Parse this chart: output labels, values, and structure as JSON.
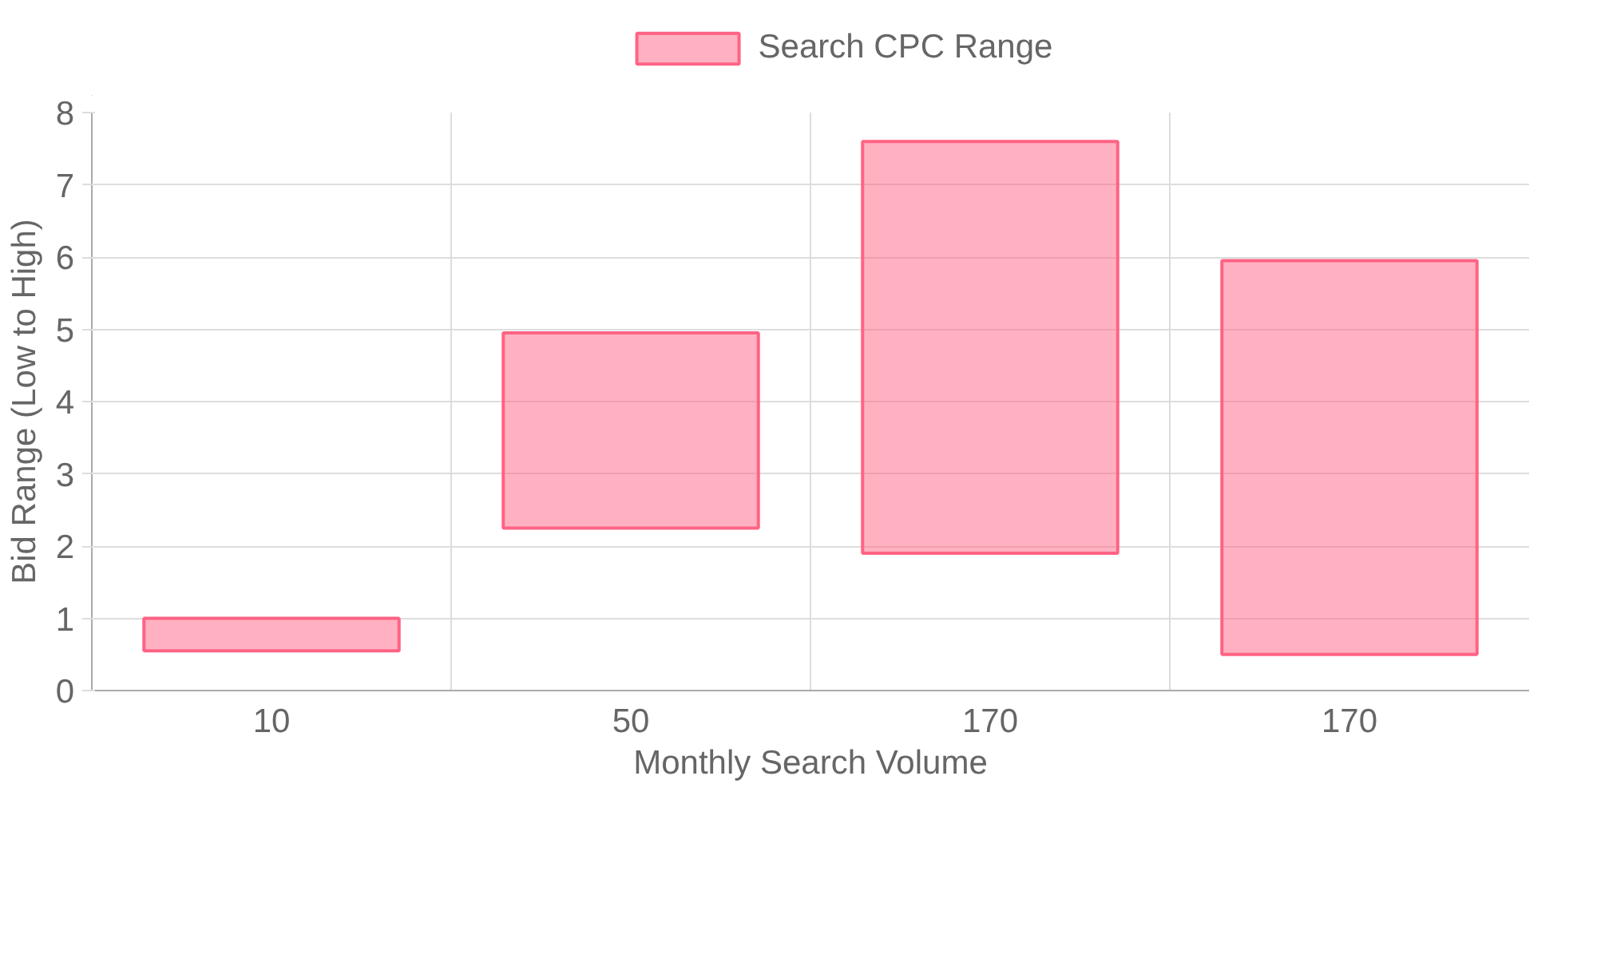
{
  "chart_data": {
    "type": "bar",
    "xlabel": "Monthly Search Volume",
    "ylabel": "Bid Range (Low to High)",
    "categories": [
      "10",
      "50",
      "170",
      "170"
    ],
    "series": [
      {
        "name": "Search CPC Range",
        "color": "#ff6384",
        "values": [
          0.45,
          2.7,
          5.7,
          5.45
        ],
        "base": [
          0.55,
          2.25,
          1.9,
          0.5
        ]
      }
    ],
    "ylim": [
      0,
      8
    ],
    "yticks": [
      0,
      1,
      2,
      3,
      4,
      5,
      6,
      7,
      8
    ],
    "grid": true,
    "legend": "top"
  }
}
